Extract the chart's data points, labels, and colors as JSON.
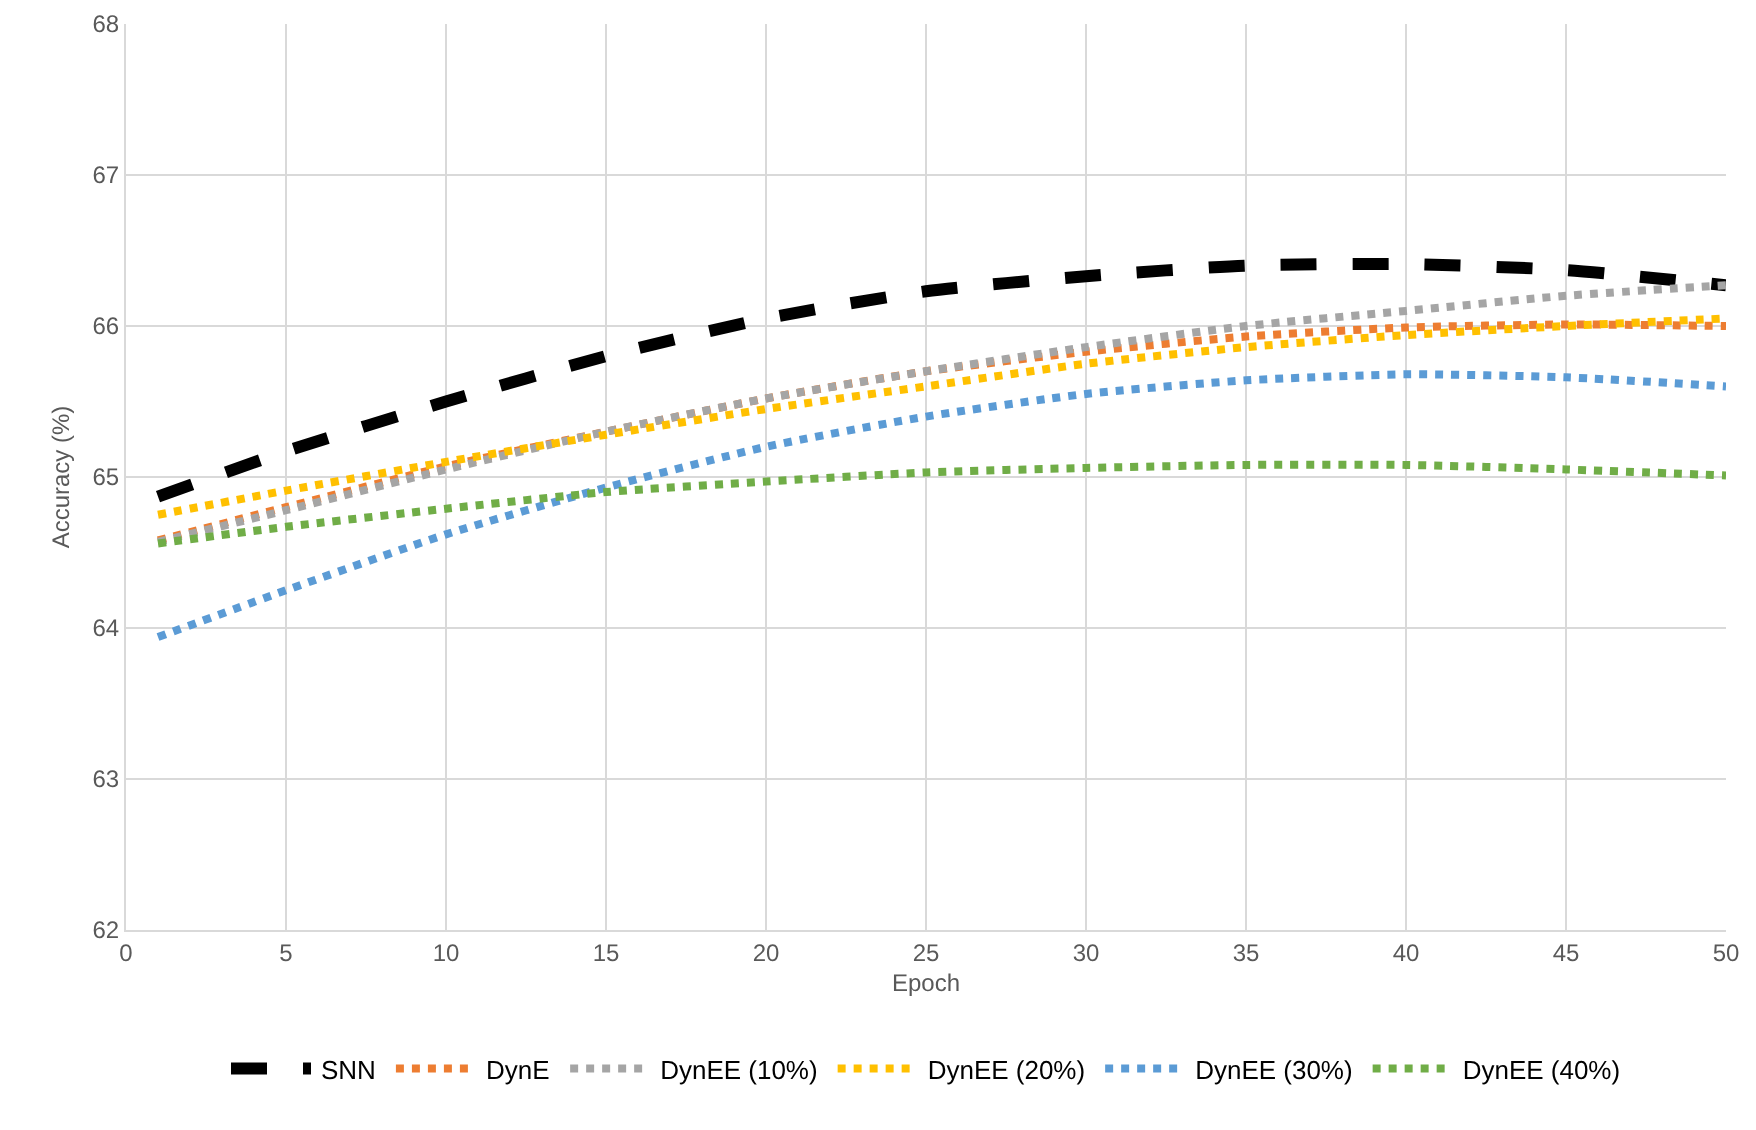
{
  "chart_data": {
    "type": "line",
    "xlabel": "Epoch",
    "ylabel": "Accuracy (%)",
    "x": [
      1,
      5,
      10,
      15,
      20,
      25,
      30,
      35,
      40,
      45,
      50
    ],
    "series": [
      {
        "name": "SNN",
        "color": "#000000",
        "line_style": "dashed",
        "values": [
          64.87,
          65.17,
          65.5,
          65.8,
          66.05,
          66.23,
          66.33,
          66.4,
          66.41,
          66.37,
          66.27
        ]
      },
      {
        "name": "DynE",
        "color": "#ed7d31",
        "line_style": "dotted",
        "values": [
          64.58,
          64.8,
          65.07,
          65.3,
          65.52,
          65.7,
          65.83,
          65.93,
          65.99,
          66.01,
          66.0
        ]
      },
      {
        "name": "DynEE (10%)",
        "color": "#a5a5a5",
        "line_style": "dotted",
        "values": [
          64.57,
          64.78,
          65.05,
          65.3,
          65.52,
          65.7,
          65.86,
          66.0,
          66.1,
          66.2,
          66.27
        ]
      },
      {
        "name": "DynEE (20%)",
        "color": "#ffc000",
        "line_style": "dotted",
        "values": [
          64.75,
          64.91,
          65.1,
          65.28,
          65.45,
          65.6,
          65.75,
          65.86,
          65.94,
          66.0,
          66.05
        ]
      },
      {
        "name": "DynEE (30%)",
        "color": "#5b9bd5",
        "line_style": "dotted",
        "values": [
          63.94,
          64.25,
          64.62,
          64.93,
          65.2,
          65.4,
          65.55,
          65.64,
          65.68,
          65.66,
          65.6
        ]
      },
      {
        "name": "DynEE (40%)",
        "color": "#70ad47",
        "line_style": "dotted",
        "values": [
          64.56,
          64.67,
          64.79,
          64.9,
          64.97,
          65.03,
          65.06,
          65.08,
          65.08,
          65.05,
          65.01
        ]
      }
    ],
    "xlim": [
      0,
      50
    ],
    "xticks": [
      0,
      5,
      10,
      15,
      20,
      25,
      30,
      35,
      40,
      45,
      50
    ],
    "ylim": [
      62,
      68
    ],
    "yticks": [
      62,
      63,
      64,
      65,
      66,
      67,
      68
    ],
    "grid": true,
    "legend": "bottom",
    "marker": "none"
  }
}
